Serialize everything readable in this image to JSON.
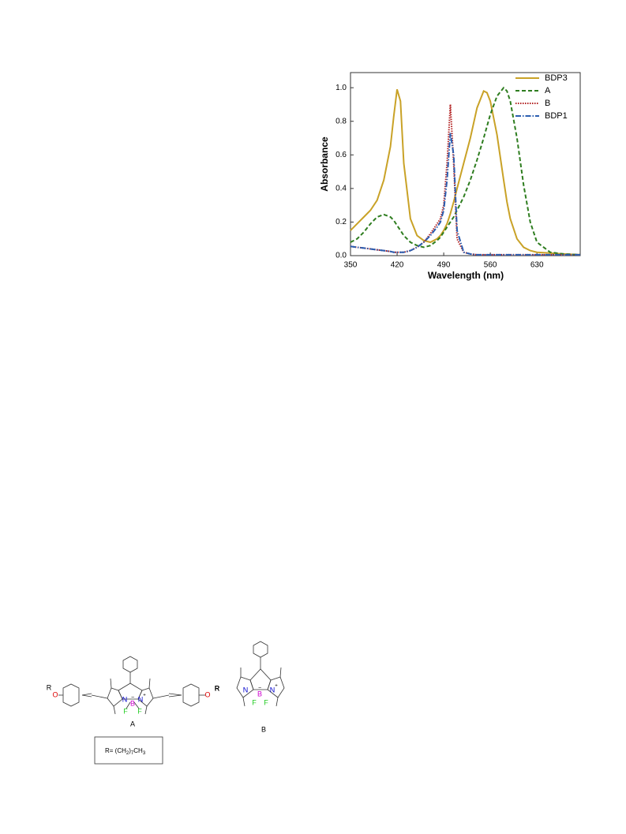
{
  "chart_data": {
    "type": "line",
    "xlabel": "Wavelength (nm)",
    "ylabel": "Absorbance",
    "x": [
      350,
      360,
      370,
      380,
      390,
      400,
      410,
      415,
      420,
      425,
      430,
      440,
      450,
      460,
      470,
      480,
      485,
      490,
      495,
      500,
      505,
      510,
      520,
      530,
      540,
      550,
      555,
      560,
      570,
      580,
      585,
      590,
      600,
      610,
      620,
      630,
      650,
      670,
      695
    ],
    "series": [
      {
        "name": "BDP3",
        "color": "#c9a227",
        "style": "solid",
        "values": [
          0.15,
          0.19,
          0.23,
          0.27,
          0.33,
          0.45,
          0.65,
          0.83,
          0.99,
          0.92,
          0.55,
          0.22,
          0.12,
          0.09,
          0.08,
          0.1,
          0.12,
          0.15,
          0.19,
          0.25,
          0.32,
          0.4,
          0.55,
          0.7,
          0.88,
          0.98,
          0.97,
          0.92,
          0.72,
          0.45,
          0.32,
          0.22,
          0.1,
          0.05,
          0.03,
          0.02,
          0.015,
          0.01,
          0.005
        ]
      },
      {
        "name": "A",
        "color": "#2e7d1f",
        "style": "dashed",
        "values": [
          0.08,
          0.1,
          0.14,
          0.19,
          0.23,
          0.245,
          0.23,
          0.21,
          0.18,
          0.15,
          0.12,
          0.08,
          0.06,
          0.05,
          0.06,
          0.09,
          0.11,
          0.14,
          0.17,
          0.2,
          0.23,
          0.27,
          0.35,
          0.45,
          0.57,
          0.7,
          0.77,
          0.84,
          0.95,
          1.0,
          0.98,
          0.92,
          0.7,
          0.42,
          0.2,
          0.08,
          0.02,
          0.01,
          0.005
        ]
      },
      {
        "name": "B",
        "color": "#b22222",
        "style": "dotted",
        "values": [
          0.055,
          0.05,
          0.045,
          0.04,
          0.035,
          0.03,
          0.025,
          0.02,
          0.02,
          0.02,
          0.02,
          0.03,
          0.05,
          0.08,
          0.13,
          0.19,
          0.22,
          0.3,
          0.55,
          0.9,
          0.55,
          0.1,
          0.02,
          0.01,
          0.005,
          0.005,
          0.005,
          0.005,
          0.005,
          0.005,
          0.005,
          0.005,
          0.005,
          0.005,
          0.005,
          0.005,
          0.005,
          0.005,
          0.005
        ]
      },
      {
        "name": "BDP1",
        "color": "#2a5db0",
        "style": "dashdot",
        "values": [
          0.055,
          0.05,
          0.045,
          0.04,
          0.035,
          0.03,
          0.025,
          0.02,
          0.02,
          0.02,
          0.02,
          0.03,
          0.05,
          0.08,
          0.12,
          0.17,
          0.2,
          0.27,
          0.45,
          0.73,
          0.6,
          0.15,
          0.02,
          0.01,
          0.005,
          0.005,
          0.005,
          0.005,
          0.005,
          0.005,
          0.005,
          0.005,
          0.005,
          0.005,
          0.005,
          0.005,
          0.005,
          0.005,
          0.005
        ]
      }
    ],
    "xlim": [
      350,
      695
    ],
    "xticks": [
      350,
      420,
      490,
      560,
      630
    ],
    "ylim": [
      0,
      1.09
    ],
    "yticks": [
      {
        "value": 0,
        "label": "0.0"
      },
      0.2,
      0.4,
      0.6,
      0.8,
      {
        "value": 1,
        "label": "1.0"
      }
    ],
    "legend": "upper right"
  },
  "figure": {
    "structure_a": {
      "label": "A",
      "atoms": [
        "R",
        "O",
        "N",
        "N",
        "B",
        "F",
        "F",
        "O",
        "R"
      ],
      "charges": [
        "+",
        "−"
      ]
    },
    "structure_b": {
      "label": "B",
      "atoms": [
        "N",
        "N",
        "B",
        "F",
        "F"
      ],
      "charges": [
        "+",
        "−"
      ]
    },
    "substituent": [
      "R= (CH",
      "2",
      ")",
      "7",
      "CH",
      "3"
    ]
  }
}
